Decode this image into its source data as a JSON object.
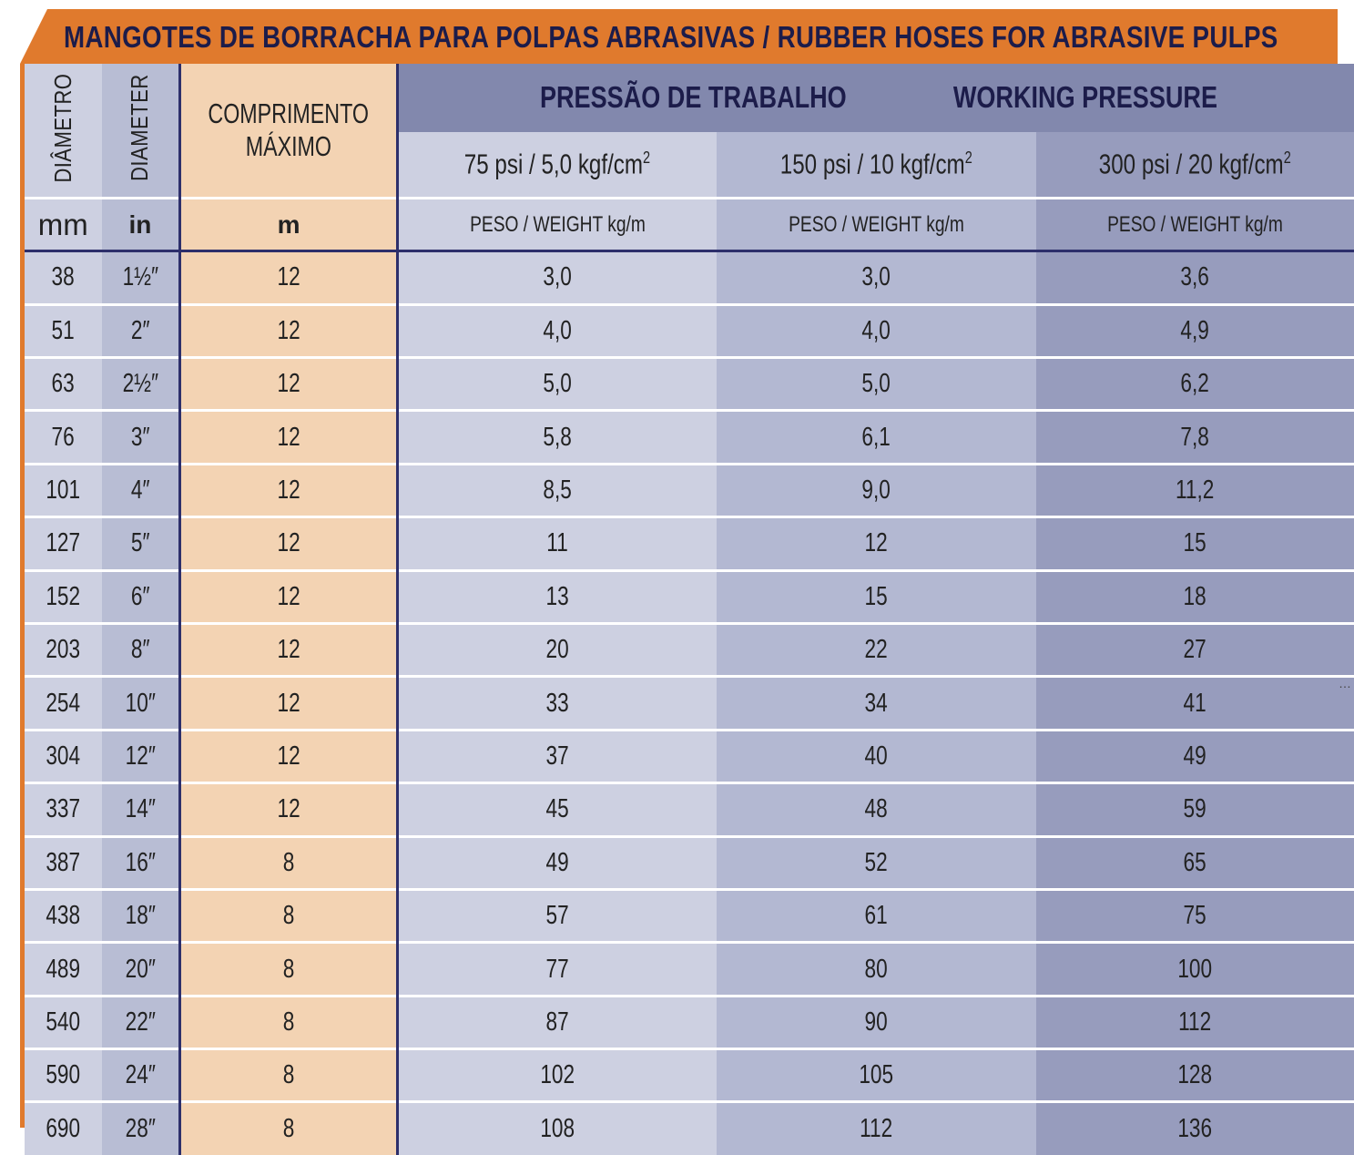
{
  "title": "MANGOTES DE BORRACHA PARA POLPAS ABRASIVAS / RUBBER HOSES FOR ABRASIVE PULPS",
  "headers": {
    "diametro": "DIÂMETRO",
    "diameter": "DIAMETER",
    "comprimento_line1": "COMPRIMENTO",
    "comprimento_line2": "MÁXIMO",
    "pressao": "PRESSÃO DE TRABALHO",
    "working_pressure": "WORKING PRESSURE",
    "pressure_classes": [
      "75 psi / 5,0 kgf/cm",
      "150 psi / 10 kgf/cm",
      "300 psi / 20 kgf/cm"
    ],
    "pressure_exponent": "2",
    "weight_label": "PESO / WEIGHT kg/m",
    "units": {
      "mm": "mm",
      "in": "in",
      "m": "m"
    }
  },
  "rows": [
    {
      "mm": "38",
      "in": "1½″",
      "m": "12",
      "w75": "3,0",
      "w150": "3,0",
      "w300": "3,6"
    },
    {
      "mm": "51",
      "in": "2″",
      "m": "12",
      "w75": "4,0",
      "w150": "4,0",
      "w300": "4,9"
    },
    {
      "mm": "63",
      "in": "2½″",
      "m": "12",
      "w75": "5,0",
      "w150": "5,0",
      "w300": "6,2"
    },
    {
      "mm": "76",
      "in": "3″",
      "m": "12",
      "w75": "5,8",
      "w150": "6,1",
      "w300": "7,8"
    },
    {
      "mm": "101",
      "in": "4″",
      "m": "12",
      "w75": "8,5",
      "w150": "9,0",
      "w300": "11,2"
    },
    {
      "mm": "127",
      "in": "5″",
      "m": "12",
      "w75": "11",
      "w150": "12",
      "w300": "15"
    },
    {
      "mm": "152",
      "in": "6″",
      "m": "12",
      "w75": "13",
      "w150": "15",
      "w300": "18"
    },
    {
      "mm": "203",
      "in": "8″",
      "m": "12",
      "w75": "20",
      "w150": "22",
      "w300": "27"
    },
    {
      "mm": "254",
      "in": "10″",
      "m": "12",
      "w75": "33",
      "w150": "34",
      "w300": "41"
    },
    {
      "mm": "304",
      "in": "12″",
      "m": "12",
      "w75": "37",
      "w150": "40",
      "w300": "49"
    },
    {
      "mm": "337",
      "in": "14″",
      "m": "12",
      "w75": "45",
      "w150": "48",
      "w300": "59"
    },
    {
      "mm": "387",
      "in": "16″",
      "m": "8",
      "w75": "49",
      "w150": "52",
      "w300": "65"
    },
    {
      "mm": "438",
      "in": "18″",
      "m": "8",
      "w75": "57",
      "w150": "61",
      "w300": "75"
    },
    {
      "mm": "489",
      "in": "20″",
      "m": "8",
      "w75": "77",
      "w150": "80",
      "w300": "100"
    },
    {
      "mm": "540",
      "in": "22″",
      "m": "8",
      "w75": "87",
      "w150": "90",
      "w300": "112"
    },
    {
      "mm": "590",
      "in": "24″",
      "m": "8",
      "w75": "102",
      "w150": "105",
      "w300": "128"
    },
    {
      "mm": "690",
      "in": "28″",
      "m": "8",
      "w75": "108",
      "w150": "112",
      "w300": "136"
    }
  ],
  "colors": {
    "title_band": "#e07a2d",
    "title_text": "#1c1c4a",
    "length_column": "#f3d3b3",
    "pressure_header": "#8288ad",
    "col_75": "#cdd0e1",
    "col_150": "#b3b8d2",
    "col_300": "#979cbd",
    "rule": "#2d2f6b"
  }
}
